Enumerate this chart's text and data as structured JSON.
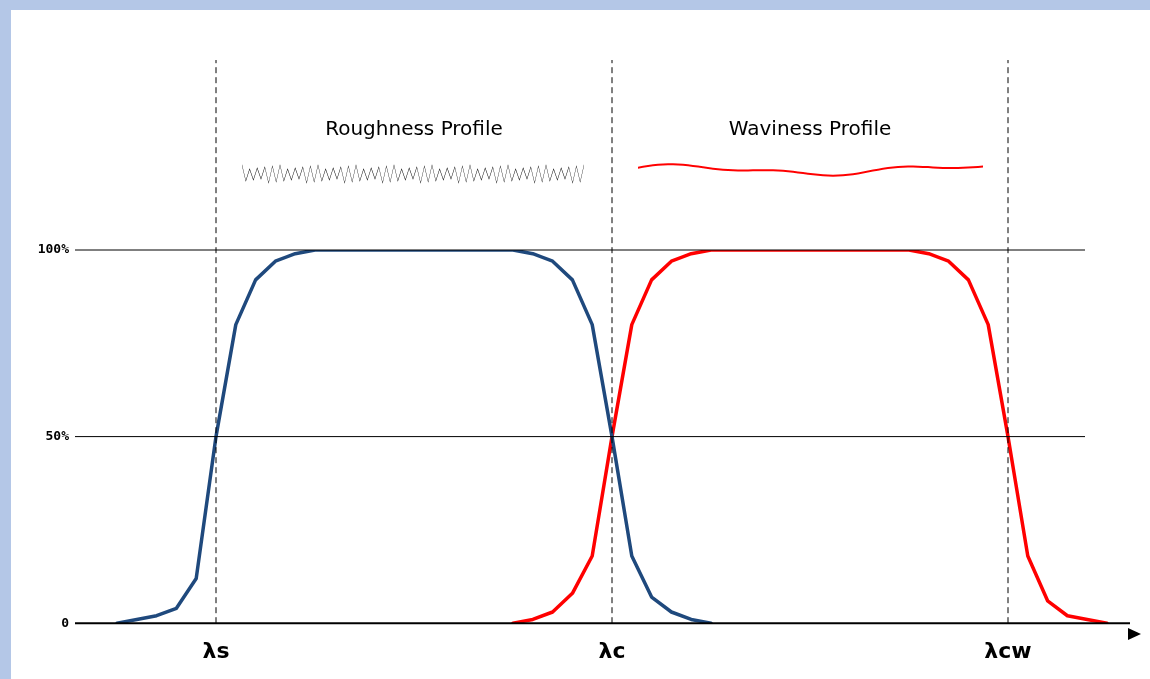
{
  "chart_data": {
    "type": "line",
    "annotations": [
      "Roughness Profile",
      "Waviness Profile"
    ],
    "categories": [
      null,
      null,
      null,
      null,
      null,
      "λs",
      null,
      null,
      null,
      null,
      null,
      null,
      null,
      null,
      null,
      null,
      null,
      null,
      null,
      null,
      null,
      null,
      null,
      null,
      null,
      "λc",
      null,
      null,
      null,
      null,
      null,
      null,
      null,
      null,
      null,
      null,
      null,
      null,
      null,
      null,
      null,
      null,
      null,
      null,
      null,
      "λcw",
      null,
      null,
      null,
      null,
      null
    ],
    "ylim": [
      0,
      100
    ],
    "yticks": [
      {
        "value": 0,
        "label": "0"
      },
      {
        "value": 50,
        "label": "50%"
      },
      {
        "value": 100,
        "label": "100%"
      }
    ],
    "legend": false,
    "marker": "none",
    "line_style": "solid",
    "ref_lines": [
      {
        "axis": "y",
        "value": 50,
        "line_style": "solid",
        "color": "#000000"
      },
      {
        "axis": "y",
        "value": 100,
        "line_style": "solid",
        "color": "#000000"
      },
      {
        "axis": "x",
        "value": "λs",
        "line_style": "dashed",
        "color": "#000000"
      },
      {
        "axis": "x",
        "value": "λc",
        "line_style": "dashed",
        "color": "#000000"
      },
      {
        "axis": "x",
        "value": "λcw",
        "line_style": "dashed",
        "color": "#000000"
      }
    ],
    "series": [
      {
        "color": "#1f497d",
        "values": [
          0,
          1,
          2,
          4,
          12,
          50,
          80,
          92,
          97,
          99,
          100,
          100,
          100,
          100,
          100,
          100,
          100,
          100,
          100,
          100,
          100,
          99,
          97,
          92,
          80,
          50,
          18,
          7,
          3,
          1,
          0,
          null,
          null,
          null,
          null,
          null,
          null,
          null,
          null,
          null,
          null,
          null,
          null,
          null,
          null,
          null,
          null,
          null,
          null,
          null,
          null
        ]
      },
      {
        "color": "#ff0000",
        "values": [
          null,
          null,
          null,
          null,
          null,
          null,
          null,
          null,
          null,
          null,
          null,
          null,
          null,
          null,
          null,
          null,
          null,
          null,
          null,
          null,
          0,
          1,
          3,
          8,
          18,
          50,
          80,
          92,
          97,
          99,
          100,
          100,
          100,
          100,
          100,
          100,
          100,
          100,
          100,
          100,
          100,
          99,
          97,
          92,
          80,
          50,
          18,
          6,
          2,
          1,
          0
        ]
      }
    ]
  }
}
